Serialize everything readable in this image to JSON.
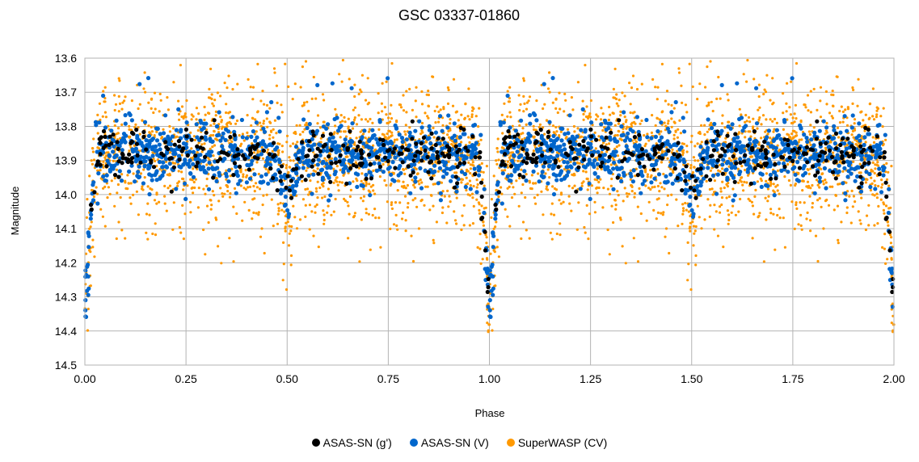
{
  "chart_data": {
    "type": "scatter",
    "title": "GSC 03337-01860",
    "xlabel": "Phase",
    "ylabel": "Magnitude",
    "xlim": [
      0,
      2
    ],
    "ylim": [
      14.5,
      13.6
    ],
    "y_inverted": true,
    "xticks": [
      "0.00",
      "0.25",
      "0.50",
      "0.75",
      "1.00",
      "1.25",
      "1.50",
      "1.75",
      "2.00"
    ],
    "yticks": [
      "13.6",
      "13.7",
      "13.8",
      "13.9",
      "14.0",
      "14.1",
      "14.2",
      "14.3",
      "14.4",
      "14.5"
    ],
    "grid": true,
    "legend_position": "bottom",
    "baseline_magnitude": 13.88,
    "primary_eclipse": {
      "phase": 0.0,
      "depth_magnitude": 14.35,
      "half_width_phase": 0.035
    },
    "secondary_eclipse": {
      "phase": 0.5,
      "depth_magnitude": 14.0,
      "half_width_phase": 0.04
    },
    "series": [
      {
        "name": "ASAS-SN (g')",
        "color": "#000000",
        "point_count": 260,
        "scatter_magnitude": 0.035
      },
      {
        "name": "ASAS-SN (V)",
        "color": "#0066cc",
        "point_count": 900,
        "scatter_magnitude": 0.045
      },
      {
        "name": "SuperWASP (CV)",
        "color": "#ff9900",
        "point_count": 1700,
        "scatter_magnitude": 0.09
      }
    ]
  }
}
